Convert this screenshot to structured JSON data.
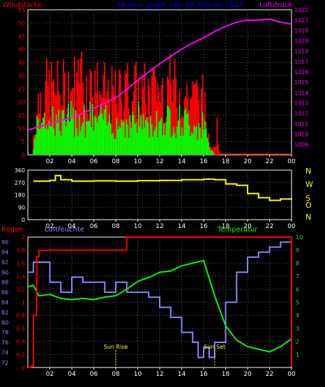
{
  "chart_data": [
    {
      "type": "bar",
      "title": "24-hour graph day: 02.Februar 2022",
      "label_left": "Windstärke",
      "label_right": "Luftdruck",
      "x_ticks": [
        "02",
        "04",
        "06",
        "08",
        "10",
        "12",
        "14",
        "16",
        "18",
        "20",
        "22",
        "00"
      ],
      "ylim_left": [
        0,
        55
      ],
      "y_ticks_left": [
        "0",
        "5",
        "10",
        "15",
        "20",
        "25",
        "30",
        "35",
        "40",
        "45",
        "50",
        "55"
      ],
      "ylim_right": [
        1008,
        1022
      ],
      "y_ticks_right": [
        "1009",
        "1010",
        "1011",
        "1012",
        "1013",
        "1014",
        "1015",
        "1016",
        "1017",
        "1018",
        "1019",
        "1020",
        "1021",
        "1022"
      ],
      "grid": true,
      "colors": {
        "gust": "#ff0000",
        "wind": "#00ff00",
        "pressure": "#ff00ff",
        "title": "#0000ff"
      },
      "series": [
        {
          "key": "gust",
          "x": [
            0.5,
            1,
            2,
            3,
            4,
            5,
            6,
            7,
            8,
            9,
            10,
            11,
            12,
            13,
            14,
            15,
            16,
            16.5,
            17.5
          ],
          "values": [
            10,
            30,
            35,
            33,
            36,
            38,
            35,
            32,
            30,
            34,
            33,
            32,
            34,
            35,
            33,
            30,
            28,
            8,
            3
          ]
        },
        {
          "key": "wind",
          "x": [
            0.5,
            1,
            2,
            3,
            4,
            5,
            6,
            7,
            8,
            9,
            10,
            11,
            12,
            13,
            14,
            15,
            16,
            16.5,
            17
          ],
          "values": [
            4,
            18,
            18,
            14,
            16,
            17,
            16,
            15,
            14,
            15,
            16,
            14,
            15,
            16,
            15,
            14,
            13,
            4,
            0
          ]
        },
        {
          "key": "pressure",
          "x": [
            0,
            1,
            2,
            3,
            4,
            5,
            6,
            7,
            8,
            9,
            10,
            11,
            12,
            13,
            14,
            15,
            16,
            17,
            18,
            19,
            20,
            21,
            22,
            23,
            24
          ],
          "values": [
            1010.4,
            1010.7,
            1011.0,
            1011.3,
            1011.6,
            1012.0,
            1012.5,
            1013.0,
            1013.5,
            1014.3,
            1015.2,
            1016.0,
            1016.8,
            1017.5,
            1018.2,
            1018.8,
            1019.3,
            1019.9,
            1020.4,
            1020.8,
            1021.0,
            1021.0,
            1021.1,
            1020.8,
            1020.6
          ]
        }
      ]
    },
    {
      "type": "line",
      "x_ticks": [
        "02",
        "04",
        "06",
        "08",
        "10",
        "12",
        "14",
        "16",
        "18",
        "20",
        "22",
        "00"
      ],
      "ylim": [
        0,
        360
      ],
      "y_ticks": [
        "0",
        "90",
        "180",
        "270",
        "360"
      ],
      "direction_labels": [
        "N",
        "W",
        "S",
        "O",
        "N"
      ],
      "color": "#ffff00",
      "series": [
        {
          "x": [
            0.5,
            2,
            2.5,
            3,
            4,
            6,
            8,
            10,
            12,
            14,
            16,
            17,
            18,
            19,
            20,
            21,
            22,
            23,
            24
          ],
          "values": [
            280,
            285,
            320,
            290,
            280,
            282,
            280,
            283,
            285,
            290,
            295,
            290,
            260,
            250,
            190,
            160,
            140,
            150,
            160
          ]
        }
      ]
    },
    {
      "type": "line",
      "x_ticks": [
        "02",
        "04",
        "06",
        "08",
        "10",
        "12",
        "14",
        "16",
        "18",
        "20",
        "22",
        "00"
      ],
      "label_rain": "Regen",
      "label_humidity": "Luftfeuchte",
      "label_temp": "Temperatur",
      "sunrise": "Sun Rise",
      "sunset": "Sun Set",
      "sunrise_x": 8.0,
      "sunset_x": 17.0,
      "ylim_rain": [
        0,
        2
      ],
      "y_ticks_rain": [
        "0",
        "0.2",
        "0.4",
        "0.6",
        "0.8",
        "1",
        "1.2",
        "1.4",
        "1.6",
        "1.8",
        "2"
      ],
      "ylim_humidity": [
        71,
        97
      ],
      "y_ticks_humidity": [
        "72",
        "74",
        "76",
        "78",
        "80",
        "82",
        "84",
        "86",
        "88",
        "90",
        "92",
        "94",
        "96"
      ],
      "ylim_temp": [
        0,
        10
      ],
      "y_ticks_temp": [
        "1",
        "2",
        "3",
        "4",
        "5",
        "6",
        "7",
        "8",
        "9",
        "10"
      ],
      "colors": {
        "rain": "#ff0000",
        "humidity": "#8888ff",
        "temp": "#00ff00"
      },
      "series": [
        {
          "key": "rain",
          "x": [
            0,
            0.3,
            0.5,
            0.8,
            1,
            8,
            8.5,
            9,
            23.9,
            24,
            24
          ],
          "values": [
            0,
            0.02,
            0.8,
            1.7,
            1.8,
            1.8,
            1.8,
            2.0,
            2.0,
            2.0,
            0.02
          ]
        },
        {
          "key": "humidity",
          "x": [
            0,
            0.5,
            1,
            2,
            3,
            4,
            5,
            6,
            7,
            8,
            9,
            10,
            11,
            12,
            13,
            14,
            15,
            15.5,
            16,
            16.5,
            17,
            18,
            19,
            20,
            21,
            22,
            23,
            24
          ],
          "values": [
            90,
            92,
            92,
            88,
            86,
            89,
            88,
            88,
            86,
            88,
            86,
            86,
            85,
            83,
            81,
            78,
            76,
            73,
            75,
            73,
            76,
            84,
            90,
            93,
            94,
            95,
            96,
            96
          ]
        },
        {
          "key": "temp",
          "x": [
            0,
            0.5,
            1,
            2,
            3,
            4,
            5,
            6,
            7,
            8,
            9,
            10,
            11,
            12,
            13,
            14,
            15,
            16,
            17,
            18,
            19,
            20,
            21,
            22,
            23,
            24
          ],
          "values": [
            6.2,
            6.3,
            5.5,
            5.6,
            5.3,
            5.2,
            5.3,
            5.2,
            5.4,
            5.5,
            6.0,
            6.6,
            6.9,
            7.3,
            7.4,
            7.8,
            8.0,
            8.2,
            5.5,
            3.2,
            2.1,
            1.6,
            1.4,
            1.2,
            1.6,
            2.2
          ]
        }
      ]
    }
  ]
}
